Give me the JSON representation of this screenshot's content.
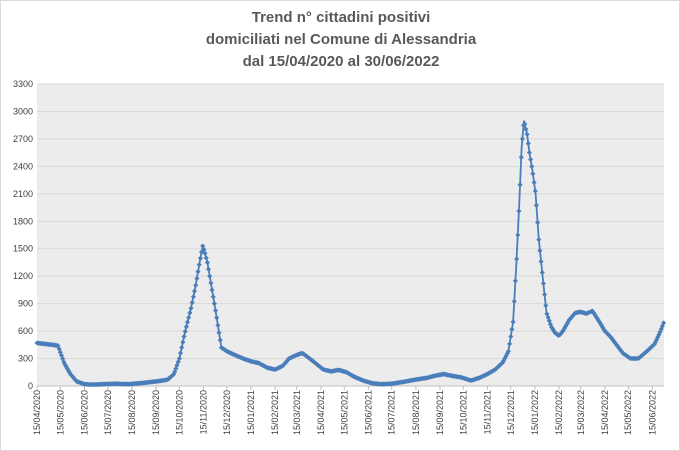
{
  "chart_data": {
    "type": "line",
    "title": [
      "Trend n° cittadini positivi",
      "domiciliati nel Comune di Alessandria",
      "dal 15/04/2020 al 30/06/2022"
    ],
    "xlabel": "",
    "ylabel": "",
    "ylim": [
      0,
      3300
    ],
    "y_ticks": [
      0,
      300,
      600,
      900,
      1200,
      1500,
      1800,
      2100,
      2400,
      2700,
      3000,
      3300
    ],
    "x_range": [
      "2020-04-15",
      "2022-06-30"
    ],
    "x_ticks": [
      "15/04/2020",
      "15/05/2020",
      "15/06/2020",
      "15/07/2020",
      "15/08/2020",
      "15/09/2020",
      "15/10/2020",
      "15/11/2020",
      "15/12/2020",
      "15/01/2021",
      "15/02/2021",
      "15/03/2021",
      "15/04/2021",
      "15/05/2021",
      "15/06/2021",
      "15/07/2021",
      "15/08/2021",
      "15/09/2021",
      "15/10/2021",
      "15/11/2021",
      "15/12/2021",
      "15/01/2022",
      "15/02/2022",
      "15/03/2022",
      "15/04/2022",
      "15/05/2022",
      "15/06/2022"
    ],
    "grid": true,
    "legend": "none",
    "colors": {
      "series": "#4a7ebb",
      "grid": "#d9d9d9",
      "background": "#ececec"
    },
    "series": [
      {
        "x": [
          "2020-04-15",
          "2020-04-25",
          "2020-05-05",
          "2020-05-12",
          "2020-05-20",
          "2020-05-28",
          "2020-06-05",
          "2020-06-15",
          "2020-06-25",
          "2020-07-10",
          "2020-07-25",
          "2020-08-10",
          "2020-08-25",
          "2020-09-05",
          "2020-09-20",
          "2020-09-30",
          "2020-10-08",
          "2020-10-15",
          "2020-10-22",
          "2020-10-30",
          "2020-11-05",
          "2020-11-10",
          "2020-11-14",
          "2020-11-17",
          "2020-11-20",
          "2020-11-25",
          "2020-12-01",
          "2020-12-08",
          "2020-12-15",
          "2020-12-25",
          "2021-01-05",
          "2021-01-15",
          "2021-01-25",
          "2021-02-05",
          "2021-02-15",
          "2021-02-25",
          "2021-03-05",
          "2021-03-15",
          "2021-03-22",
          "2021-03-30",
          "2021-04-08",
          "2021-04-18",
          "2021-04-28",
          "2021-05-08",
          "2021-05-18",
          "2021-05-28",
          "2021-06-08",
          "2021-06-20",
          "2021-07-01",
          "2021-07-15",
          "2021-07-30",
          "2021-08-15",
          "2021-08-30",
          "2021-09-10",
          "2021-09-20",
          "2021-10-01",
          "2021-10-12",
          "2021-10-25",
          "2021-11-05",
          "2021-11-15",
          "2021-11-25",
          "2021-12-05",
          "2021-12-12",
          "2021-12-18",
          "2021-12-22",
          "2021-12-26",
          "2021-12-29",
          "2022-01-01",
          "2022-01-05",
          "2022-01-08",
          "2022-01-12",
          "2022-01-16",
          "2022-01-20",
          "2022-01-25",
          "2022-01-30",
          "2022-02-05",
          "2022-02-10",
          "2022-02-15",
          "2022-02-20",
          "2022-02-28",
          "2022-03-08",
          "2022-03-15",
          "2022-03-22",
          "2022-03-30",
          "2022-04-08",
          "2022-04-15",
          "2022-04-22",
          "2022-04-30",
          "2022-05-08",
          "2022-05-18",
          "2022-05-28",
          "2022-06-08",
          "2022-06-18",
          "2022-06-25",
          "2022-06-30"
        ],
        "values": [
          470,
          460,
          450,
          440,
          250,
          130,
          50,
          20,
          15,
          20,
          25,
          20,
          30,
          40,
          55,
          70,
          130,
          300,
          580,
          850,
          1100,
          1350,
          1530,
          1450,
          1350,
          1100,
          800,
          420,
          380,
          340,
          300,
          270,
          250,
          200,
          180,
          220,
          300,
          340,
          360,
          310,
          250,
          180,
          160,
          175,
          150,
          100,
          60,
          30,
          20,
          25,
          45,
          70,
          90,
          115,
          130,
          110,
          95,
          60,
          90,
          130,
          180,
          260,
          380,
          700,
          1300,
          2000,
          2600,
          2900,
          2750,
          2550,
          2350,
          2100,
          1600,
          1200,
          800,
          650,
          580,
          550,
          600,
          720,
          800,
          810,
          790,
          820,
          700,
          600,
          540,
          450,
          360,
          300,
          300,
          380,
          460,
          590,
          700
        ]
      }
    ]
  }
}
